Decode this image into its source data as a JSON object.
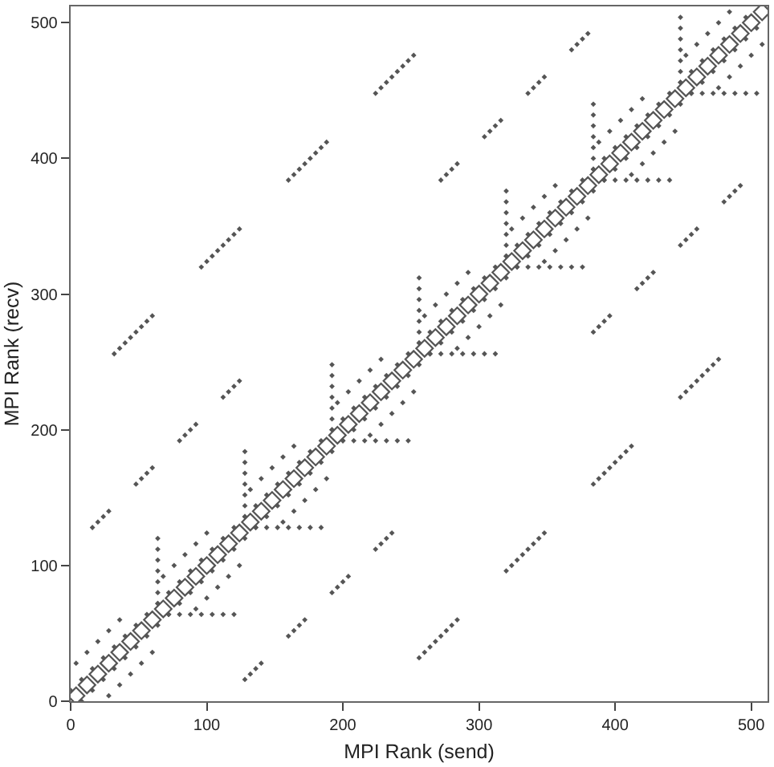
{
  "chart_data": {
    "type": "scatter",
    "xlabel": "MPI Rank (send)",
    "ylabel": "MPI Rank (recv)",
    "xlim": [
      0,
      512
    ],
    "ylim": [
      0,
      512
    ],
    "xticks": [
      0,
      100,
      200,
      300,
      400,
      500
    ],
    "yticks": [
      0,
      100,
      200,
      300,
      400,
      500
    ],
    "marker": "diamond",
    "series": [
      {
        "color": "#555555",
        "x": [
          4,
          12,
          20,
          28,
          36,
          44,
          52,
          60,
          68,
          76,
          84,
          92,
          100,
          108,
          116,
          124,
          132,
          140,
          148,
          156,
          164,
          172,
          180,
          188,
          196,
          204,
          212,
          220,
          228,
          236,
          244,
          252,
          260,
          268,
          276,
          284,
          292,
          300,
          308,
          316,
          324,
          332,
          340,
          348,
          356,
          364,
          372,
          380,
          388,
          396,
          404,
          412,
          420,
          428,
          436,
          444,
          452,
          460,
          468,
          476,
          484,
          492,
          500,
          508
        ],
        "values": [
          4,
          12,
          20,
          28,
          36,
          44,
          52,
          60,
          68,
          76,
          84,
          92,
          100,
          108,
          116,
          124,
          132,
          140,
          148,
          156,
          164,
          172,
          180,
          188,
          196,
          204,
          212,
          220,
          228,
          236,
          244,
          252,
          260,
          268,
          276,
          284,
          292,
          300,
          308,
          316,
          324,
          332,
          340,
          348,
          356,
          364,
          372,
          380,
          388,
          396,
          404,
          412,
          420,
          428,
          436,
          444,
          452,
          460,
          468,
          476,
          484,
          492,
          500,
          508
        ]
      },
      {
        "color": "#555555",
        "x": [
          0,
          8,
          16,
          24,
          32,
          40,
          48,
          56,
          64,
          72,
          80,
          88,
          96,
          104,
          112,
          120,
          128,
          136,
          144,
          152,
          160,
          168,
          176,
          184,
          192,
          200,
          208,
          216,
          224,
          232,
          240,
          248,
          256,
          264,
          272,
          280,
          288,
          296,
          304,
          312,
          320,
          328,
          336,
          344,
          352,
          360,
          368,
          376,
          384,
          392,
          400,
          408,
          416,
          424,
          432,
          440,
          448,
          456,
          464,
          472,
          480,
          488,
          496,
          8,
          16,
          24,
          32,
          40,
          48,
          56,
          64,
          72,
          80,
          88,
          96,
          104,
          112,
          120,
          128,
          136,
          144,
          152,
          160,
          168,
          176,
          184,
          192,
          200,
          208,
          216,
          224,
          232,
          240,
          248,
          256,
          264,
          272,
          280,
          288,
          296,
          304,
          312,
          320,
          328,
          336,
          344,
          352,
          360,
          368,
          376,
          384,
          392,
          400,
          408,
          416,
          424,
          432,
          440,
          448,
          456,
          464,
          472,
          480,
          488,
          496,
          504
        ],
        "values": [
          8,
          16,
          24,
          32,
          40,
          48,
          56,
          64,
          72,
          80,
          88,
          96,
          104,
          112,
          120,
          128,
          136,
          144,
          152,
          160,
          168,
          176,
          184,
          192,
          200,
          208,
          216,
          224,
          232,
          240,
          248,
          256,
          264,
          272,
          280,
          288,
          296,
          304,
          312,
          320,
          328,
          336,
          344,
          352,
          360,
          368,
          376,
          384,
          392,
          400,
          408,
          416,
          424,
          432,
          440,
          448,
          456,
          464,
          472,
          480,
          488,
          496,
          504,
          0,
          8,
          16,
          24,
          32,
          40,
          48,
          56,
          64,
          72,
          80,
          88,
          96,
          104,
          112,
          120,
          128,
          136,
          144,
          152,
          160,
          168,
          176,
          184,
          192,
          200,
          208,
          216,
          224,
          232,
          240,
          248,
          256,
          264,
          272,
          280,
          288,
          296,
          304,
          312,
          320,
          328,
          336,
          344,
          352,
          360,
          368,
          376,
          384,
          392,
          400,
          408,
          416,
          424,
          432,
          440,
          448,
          456,
          464,
          472,
          480,
          488,
          496
        ]
      },
      {
        "color": "#555555",
        "x": [
          4,
          12,
          20,
          28,
          36,
          68,
          76,
          84,
          92,
          100,
          132,
          140,
          148,
          156,
          164,
          196,
          204,
          212,
          220,
          228,
          260,
          268,
          276,
          284,
          292,
          324,
          332,
          340,
          348,
          356,
          388,
          396,
          404,
          412,
          420,
          452,
          460,
          468,
          476,
          484,
          28,
          36,
          44,
          52,
          60,
          92,
          100,
          108,
          116,
          124,
          156,
          164,
          172,
          180,
          188,
          220,
          228,
          236,
          244,
          252,
          284,
          292,
          300,
          308,
          316,
          348,
          356,
          364,
          372,
          380,
          412,
          420,
          428,
          436,
          444,
          476,
          484,
          492,
          500,
          508
        ],
        "values": [
          28,
          36,
          44,
          52,
          60,
          92,
          100,
          108,
          116,
          124,
          156,
          164,
          172,
          180,
          188,
          220,
          228,
          236,
          244,
          252,
          284,
          292,
          300,
          308,
          316,
          348,
          356,
          364,
          372,
          380,
          412,
          420,
          428,
          436,
          444,
          476,
          484,
          492,
          500,
          508,
          4,
          12,
          20,
          28,
          36,
          68,
          76,
          84,
          92,
          100,
          132,
          140,
          148,
          156,
          164,
          196,
          204,
          212,
          220,
          228,
          260,
          268,
          276,
          284,
          292,
          324,
          332,
          340,
          348,
          356,
          388,
          396,
          404,
          412,
          420,
          452,
          460,
          468,
          476,
          484
        ]
      },
      {
        "color": "#555555",
        "x": [
          64,
          64,
          64,
          64,
          64,
          64,
          64,
          72,
          80,
          88,
          96,
          104,
          112,
          120,
          128,
          128,
          128,
          128,
          128,
          128,
          128,
          136,
          144,
          152,
          160,
          168,
          176,
          184,
          192,
          192,
          192,
          192,
          192,
          192,
          192,
          200,
          208,
          216,
          224,
          232,
          240,
          248,
          256,
          256,
          256,
          256,
          256,
          256,
          256,
          264,
          272,
          280,
          288,
          296,
          304,
          312,
          320,
          320,
          320,
          320,
          320,
          320,
          320,
          328,
          336,
          344,
          352,
          360,
          368,
          376,
          384,
          384,
          384,
          384,
          384,
          384,
          384,
          392,
          400,
          408,
          416,
          424,
          432,
          440,
          448,
          448,
          448,
          448,
          448,
          448,
          448,
          456,
          464,
          472,
          480,
          488,
          496,
          504
        ],
        "values": [
          72,
          80,
          88,
          96,
          104,
          112,
          120,
          64,
          64,
          64,
          64,
          64,
          64,
          64,
          136,
          144,
          152,
          160,
          168,
          176,
          184,
          128,
          128,
          128,
          128,
          128,
          128,
          128,
          200,
          208,
          216,
          224,
          232,
          240,
          248,
          192,
          192,
          192,
          192,
          192,
          192,
          192,
          264,
          272,
          280,
          288,
          296,
          304,
          312,
          256,
          256,
          256,
          256,
          256,
          256,
          256,
          328,
          336,
          344,
          352,
          360,
          368,
          376,
          320,
          320,
          320,
          320,
          320,
          320,
          320,
          392,
          400,
          408,
          416,
          424,
          432,
          440,
          384,
          384,
          384,
          384,
          384,
          384,
          384,
          456,
          464,
          472,
          480,
          488,
          496,
          504,
          448,
          448,
          448,
          448,
          448,
          448,
          448
        ]
      },
      {
        "color": "#555555",
        "x": [
          16,
          20,
          24,
          28,
          48,
          52,
          56,
          60,
          80,
          84,
          88,
          92,
          112,
          116,
          120,
          124,
          272,
          276,
          280,
          284,
          304,
          308,
          312,
          316,
          336,
          340,
          344,
          348,
          368,
          372,
          376,
          380,
          128,
          132,
          136,
          140,
          160,
          164,
          168,
          172,
          192,
          196,
          200,
          204,
          224,
          228,
          232,
          236,
          384,
          388,
          392,
          396,
          416,
          420,
          424,
          428,
          448,
          452,
          456,
          460,
          480,
          484,
          488,
          492
        ],
        "values": [
          128,
          132,
          136,
          140,
          160,
          164,
          168,
          172,
          192,
          196,
          200,
          204,
          224,
          228,
          232,
          236,
          384,
          388,
          392,
          396,
          416,
          420,
          424,
          428,
          448,
          452,
          456,
          460,
          480,
          484,
          488,
          492,
          16,
          20,
          24,
          28,
          48,
          52,
          56,
          60,
          80,
          84,
          88,
          92,
          112,
          116,
          120,
          124,
          272,
          276,
          280,
          284,
          304,
          308,
          312,
          316,
          336,
          340,
          344,
          348,
          368,
          372,
          376,
          380
        ]
      },
      {
        "color": "#555555",
        "x": [
          32,
          36,
          40,
          44,
          48,
          52,
          56,
          60,
          96,
          100,
          104,
          108,
          112,
          116,
          120,
          124,
          160,
          164,
          168,
          172,
          176,
          180,
          184,
          188,
          224,
          228,
          232,
          236,
          240,
          244,
          248,
          252,
          256,
          260,
          264,
          268,
          272,
          276,
          280,
          284,
          320,
          324,
          328,
          332,
          336,
          340,
          344,
          348,
          384,
          388,
          392,
          396,
          400,
          404,
          408,
          412,
          448,
          452,
          456,
          460,
          464,
          468,
          472,
          476
        ],
        "values": [
          256,
          260,
          264,
          268,
          272,
          276,
          280,
          284,
          320,
          324,
          328,
          332,
          336,
          340,
          344,
          348,
          384,
          388,
          392,
          396,
          400,
          404,
          408,
          412,
          448,
          452,
          456,
          460,
          464,
          468,
          472,
          476,
          32,
          36,
          40,
          44,
          48,
          52,
          56,
          60,
          96,
          100,
          104,
          108,
          112,
          116,
          120,
          124,
          160,
          164,
          168,
          172,
          176,
          180,
          184,
          188,
          224,
          228,
          232,
          236,
          240,
          244,
          248,
          252
        ]
      }
    ]
  }
}
